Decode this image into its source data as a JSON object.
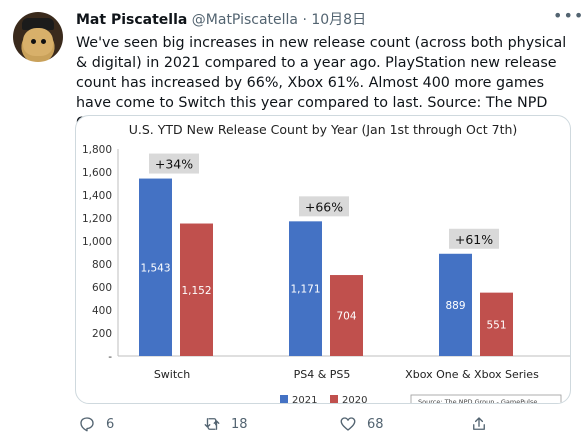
{
  "tweet": {
    "author_name": "Mat Piscatella",
    "author_handle": "@MatPiscatella",
    "separator": "·",
    "date": "10月8日",
    "text": "We've seen big increases in new release count (across both physical & digital) in 2021 compared to a year ago. PlayStation new release count has increased by 66%, Xbox 61%. Almost 400 more games have come to Switch this year compared to last. Source: The NPD Group - GamePulse."
  },
  "actions": {
    "reply_count": "6",
    "retweet_count": "18",
    "like_count": "68"
  },
  "icons": [
    "avatar",
    "more-icon",
    "reply-icon",
    "retweet-icon",
    "like-icon",
    "share-icon"
  ],
  "colors": {
    "series_2021": "#4472c4",
    "series_2020": "#c0504d",
    "annotation_bg": "#d9d9d9"
  },
  "chart_data": {
    "type": "bar",
    "title": "U.S. YTD New Release Count by Year (Jan 1st through Oct 7th)",
    "categories": [
      "Switch",
      "PS4 & PS5",
      "Xbox One & Xbox Series"
    ],
    "series": [
      {
        "name": "2021",
        "values": [
          1543,
          1171,
          889
        ],
        "labels": [
          "1,543",
          "1,171",
          "889"
        ]
      },
      {
        "name": "2020",
        "values": [
          1152,
          704,
          551
        ],
        "labels": [
          "1,152",
          "704",
          "551"
        ]
      }
    ],
    "annotations": [
      "+34%",
      "+66%",
      "+61%"
    ],
    "yticks": [
      "-",
      "200",
      "400",
      "600",
      "800",
      "1,000",
      "1,200",
      "1,400",
      "1,600",
      "1,800"
    ],
    "ylim": [
      0,
      1800
    ],
    "grid": false,
    "legend": "bottom",
    "source_note": "Source: The NPD Group - GamePulse"
  }
}
